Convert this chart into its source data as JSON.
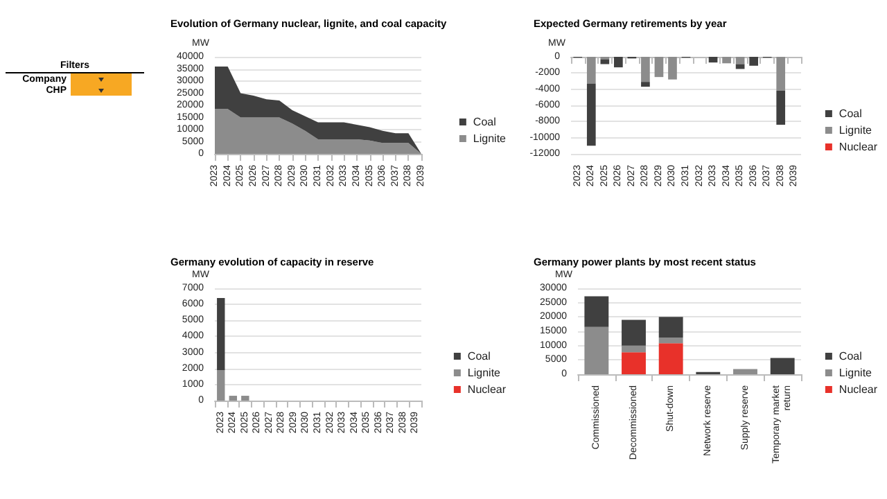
{
  "chart_data": [
    {
      "type": "other",
      "title": "Filters",
      "annotations": [
        "Company",
        "CHP"
      ]
    },
    {
      "type": "area",
      "title": "Evolution of Germany nuclear, lignite, and coal capacity",
      "ylabel": "MW",
      "categories": [
        "2023",
        "2024",
        "2025",
        "2026",
        "2027",
        "2028",
        "2029",
        "2030",
        "2031",
        "2032",
        "2033",
        "2034",
        "2035",
        "2036",
        "2037",
        "2038",
        "2039"
      ],
      "stacked": true,
      "ylim": [
        0,
        40000
      ],
      "yticks": [
        0,
        5000,
        10000,
        15000,
        20000,
        25000,
        30000,
        35000,
        40000
      ],
      "grid": "y",
      "legend": "right",
      "series": [
        {
          "name": "Lignite",
          "color": "#8c8c8c",
          "values": [
            18500,
            18500,
            15000,
            15000,
            15000,
            15000,
            12500,
            9500,
            6000,
            6000,
            6000,
            6000,
            5500,
            4500,
            4500,
            4500,
            0
          ]
        },
        {
          "name": "Coal",
          "color": "#404040",
          "values": [
            17500,
            17500,
            10000,
            9000,
            7500,
            7000,
            5500,
            6000,
            7000,
            7000,
            7000,
            6000,
            5500,
            5000,
            4000,
            4000,
            0
          ]
        }
      ]
    },
    {
      "type": "bar",
      "title": "Expected Germany retirements by year",
      "ylabel": "MW",
      "categories": [
        "2023",
        "2024",
        "2025",
        "2026",
        "2027",
        "2028",
        "2029",
        "2030",
        "2031",
        "2032",
        "2033",
        "2034",
        "2035",
        "2036",
        "2037",
        "2038",
        "2039"
      ],
      "stacked": true,
      "ylim": [
        -12000,
        0
      ],
      "yticks": [
        -12000,
        -10000,
        -8000,
        -6000,
        -4000,
        -2000,
        0
      ],
      "grid": "y",
      "legend": "right",
      "series": [
        {
          "name": "Nuclear",
          "color": "#e8312a",
          "values": [
            null,
            null,
            null,
            null,
            null,
            null,
            null,
            null,
            null,
            null,
            null,
            null,
            null,
            null,
            null,
            null,
            null
          ]
        },
        {
          "name": "Lignite",
          "color": "#8c8c8c",
          "values": [
            null,
            -3300,
            -300,
            null,
            null,
            -3100,
            -2500,
            -2800,
            null,
            null,
            null,
            -800,
            -900,
            null,
            null,
            -4200,
            null
          ]
        },
        {
          "name": "Coal",
          "color": "#404040",
          "values": [
            -100,
            -7700,
            -600,
            -1300,
            -200,
            -600,
            null,
            null,
            -100,
            null,
            -700,
            null,
            -600,
            -1100,
            -100,
            -4200,
            null
          ]
        }
      ]
    },
    {
      "type": "bar",
      "title": "Germany evolution of capacity in reserve",
      "ylabel": "MW",
      "categories": [
        "2023",
        "2024",
        "2025",
        "2026",
        "2027",
        "2028",
        "2029",
        "2030",
        "2031",
        "2032",
        "2033",
        "2034",
        "2035",
        "2036",
        "2037",
        "2038",
        "2039"
      ],
      "stacked": true,
      "ylim": [
        0,
        7000
      ],
      "yticks": [
        0,
        1000,
        2000,
        3000,
        4000,
        5000,
        6000,
        7000
      ],
      "grid": "y",
      "legend": "right",
      "series": [
        {
          "name": "Nuclear",
          "color": "#e8312a",
          "values": [
            null,
            null,
            null,
            null,
            null,
            null,
            null,
            null,
            null,
            null,
            null,
            null,
            null,
            null,
            null,
            null,
            null
          ]
        },
        {
          "name": "Lignite",
          "color": "#8c8c8c",
          "values": [
            1900,
            300,
            300,
            null,
            null,
            null,
            null,
            null,
            null,
            null,
            null,
            null,
            null,
            null,
            null,
            null,
            null
          ]
        },
        {
          "name": "Coal",
          "color": "#404040",
          "values": [
            4500,
            null,
            null,
            null,
            null,
            null,
            null,
            null,
            null,
            null,
            null,
            null,
            null,
            null,
            null,
            null,
            null
          ]
        }
      ]
    },
    {
      "type": "bar",
      "title": "Germany power plants by most recent status",
      "ylabel": "MW",
      "categories": [
        "Commissioned",
        "Decommissioned",
        "Shut-down",
        "Network reserve",
        "Supply reserve",
        "Temporary market return"
      ],
      "stacked": true,
      "ylim": [
        0,
        30000
      ],
      "yticks": [
        0,
        5000,
        10000,
        15000,
        20000,
        25000,
        30000
      ],
      "grid": "y",
      "legend": "right",
      "series": [
        {
          "name": "Nuclear",
          "color": "#e8312a",
          "values": [
            null,
            7700,
            10800,
            null,
            null,
            null
          ]
        },
        {
          "name": "Lignite",
          "color": "#8c8c8c",
          "values": [
            16500,
            2300,
            2000,
            null,
            1800,
            null
          ]
        },
        {
          "name": "Coal",
          "color": "#404040",
          "values": [
            10700,
            9000,
            7200,
            800,
            null,
            5700
          ]
        }
      ]
    }
  ]
}
